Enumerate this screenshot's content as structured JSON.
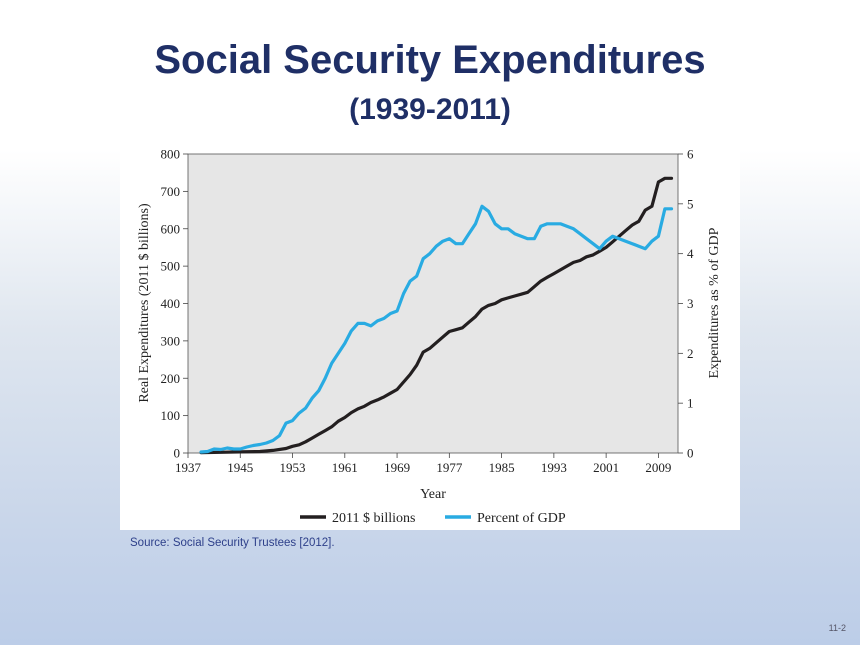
{
  "slide": {
    "title": "Social Security Expenditures",
    "subtitle": "(1939-2011)",
    "source": "Source:  Social Security Trustees [2012].",
    "page_number": "11-2"
  },
  "chart_data": {
    "type": "line",
    "xlabel": "Year",
    "ylabel_left": "Real Expenditures (2011 $ billions)",
    "ylabel_right": "Expenditures as % of GDP",
    "xlim": [
      1937,
      2012
    ],
    "ylim_left": [
      0,
      800
    ],
    "ylim_right": [
      0,
      6
    ],
    "x_ticks": [
      1937,
      1945,
      1953,
      1961,
      1969,
      1977,
      1985,
      1993,
      2001,
      2009
    ],
    "y_ticks_left": [
      0,
      100,
      200,
      300,
      400,
      500,
      600,
      700,
      800
    ],
    "y_ticks_right": [
      0,
      1,
      2,
      3,
      4,
      5,
      6
    ],
    "legend_position": "bottom",
    "colors": {
      "billions": "#231f20",
      "gdp": "#29abe2",
      "plot_bg": "#e6e6e6"
    },
    "series": [
      {
        "name": "2011 $ billions",
        "axis": "left",
        "x": [
          1939,
          1942,
          1945,
          1948,
          1950,
          1952,
          1953,
          1954,
          1955,
          1956,
          1957,
          1958,
          1959,
          1960,
          1961,
          1962,
          1963,
          1964,
          1965,
          1966,
          1967,
          1968,
          1969,
          1970,
          1971,
          1972,
          1973,
          1974,
          1975,
          1976,
          1977,
          1978,
          1979,
          1980,
          1981,
          1982,
          1983,
          1984,
          1985,
          1986,
          1987,
          1988,
          1989,
          1990,
          1991,
          1992,
          1993,
          1994,
          1995,
          1996,
          1997,
          1998,
          1999,
          2000,
          2001,
          2002,
          2003,
          2004,
          2005,
          2006,
          2007,
          2008,
          2009,
          2010,
          2011
        ],
        "y": [
          1,
          2,
          3,
          4,
          7,
          12,
          18,
          22,
          30,
          40,
          50,
          60,
          70,
          85,
          95,
          108,
          118,
          125,
          135,
          142,
          150,
          160,
          170,
          190,
          210,
          235,
          270,
          280,
          295,
          310,
          325,
          330,
          335,
          350,
          365,
          385,
          395,
          400,
          410,
          415,
          420,
          425,
          430,
          445,
          460,
          470,
          480,
          490,
          500,
          510,
          515,
          525,
          530,
          540,
          550,
          565,
          580,
          595,
          610,
          620,
          650,
          660,
          725,
          735,
          735
        ]
      },
      {
        "name": "Percent of GDP",
        "axis": "right",
        "x": [
          1939,
          1940,
          1941,
          1942,
          1943,
          1944,
          1945,
          1946,
          1947,
          1948,
          1949,
          1950,
          1951,
          1952,
          1953,
          1954,
          1955,
          1956,
          1957,
          1958,
          1959,
          1960,
          1961,
          1962,
          1963,
          1964,
          1965,
          1966,
          1967,
          1968,
          1969,
          1970,
          1971,
          1972,
          1973,
          1974,
          1975,
          1976,
          1977,
          1978,
          1979,
          1980,
          1981,
          1982,
          1983,
          1984,
          1985,
          1986,
          1987,
          1988,
          1989,
          1990,
          1991,
          1992,
          1993,
          1994,
          1995,
          1996,
          1997,
          1998,
          1999,
          2000,
          2001,
          2002,
          2003,
          2004,
          2005,
          2006,
          2007,
          2008,
          2009,
          2010,
          2011
        ],
        "y": [
          0.02,
          0.03,
          0.08,
          0.07,
          0.1,
          0.08,
          0.08,
          0.12,
          0.15,
          0.17,
          0.2,
          0.25,
          0.35,
          0.6,
          0.65,
          0.8,
          0.9,
          1.1,
          1.25,
          1.5,
          1.8,
          2.0,
          2.2,
          2.45,
          2.6,
          2.6,
          2.55,
          2.65,
          2.7,
          2.8,
          2.85,
          3.2,
          3.45,
          3.55,
          3.9,
          4.0,
          4.15,
          4.25,
          4.3,
          4.2,
          4.2,
          4.4,
          4.6,
          4.95,
          4.85,
          4.6,
          4.5,
          4.5,
          4.4,
          4.35,
          4.3,
          4.3,
          4.55,
          4.6,
          4.6,
          4.6,
          4.55,
          4.5,
          4.4,
          4.3,
          4.2,
          4.1,
          4.25,
          4.35,
          4.3,
          4.25,
          4.2,
          4.15,
          4.1,
          4.25,
          4.35,
          4.9,
          4.9
        ]
      }
    ]
  }
}
